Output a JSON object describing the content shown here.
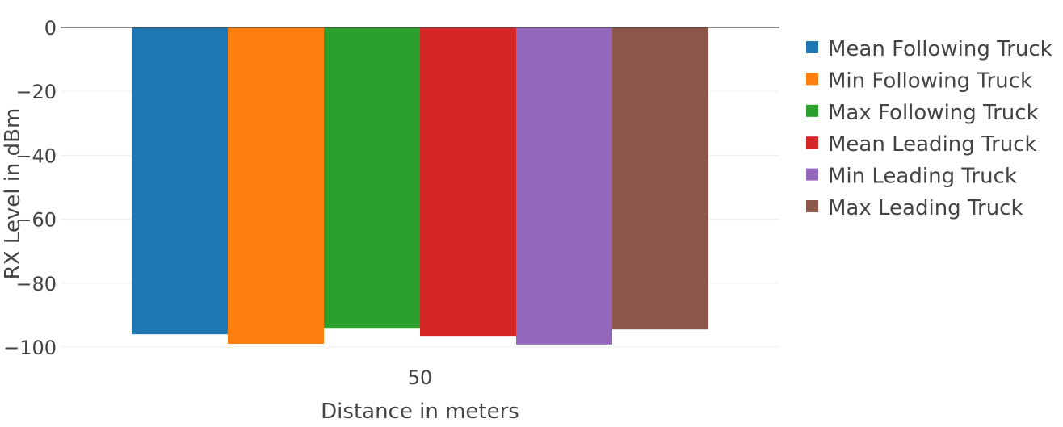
{
  "chart_data": {
    "type": "bar",
    "title": "",
    "xlabel": "Distance in meters",
    "ylabel": "RX Level in dBm",
    "categories": [
      "50"
    ],
    "ylim": [
      -100,
      0
    ],
    "yticks": [
      0,
      -20,
      -40,
      -60,
      -80,
      -100
    ],
    "ytick_labels": [
      "0",
      "−20",
      "−40",
      "−60",
      "−80",
      "−100"
    ],
    "grid": true,
    "legend_position": "right",
    "series": [
      {
        "name": "Mean Following Truck",
        "values": [
          -96
        ],
        "color": "#1f77b4"
      },
      {
        "name": "Min Following Truck",
        "values": [
          -99
        ],
        "color": "#ff7f0e"
      },
      {
        "name": "Max Following Truck",
        "values": [
          -94
        ],
        "color": "#2ca02c"
      },
      {
        "name": "Mean Leading Truck",
        "values": [
          -96.5
        ],
        "color": "#d62728"
      },
      {
        "name": "Min Leading Truck",
        "values": [
          -99.2
        ],
        "color": "#9467bd"
      },
      {
        "name": "Max Leading Truck",
        "values": [
          -94.5
        ],
        "color": "#8c564b"
      }
    ]
  }
}
